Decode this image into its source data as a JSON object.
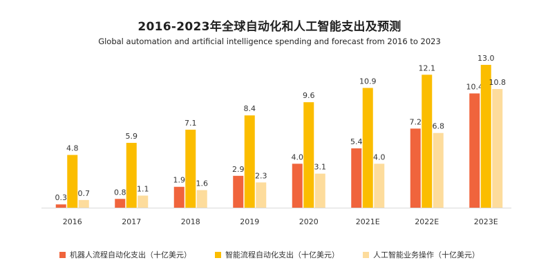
{
  "chart_data": {
    "type": "bar",
    "title": "2016-2023年全球自动化和人工智能支出及预测",
    "subtitle": "Global automation and artificial intelligence spending and forecast from 2016 to 2023",
    "categories": [
      "2016",
      "2017",
      "2018",
      "2019",
      "2020",
      "2021E",
      "2022E",
      "2023E"
    ],
    "series": [
      {
        "name": "机器人流程自动化支出（十亿美元）",
        "color": "#f0643c",
        "values": [
          0.3,
          0.8,
          1.9,
          2.9,
          4.0,
          5.4,
          7.2,
          10.4
        ]
      },
      {
        "name": "智能流程自动化支出（十亿美元）",
        "color": "#fbbd00",
        "values": [
          4.8,
          5.9,
          7.1,
          8.4,
          9.6,
          10.9,
          12.1,
          13.0
        ]
      },
      {
        "name": "人工智能业务操作（十亿美元）",
        "color": "#fddc9c",
        "values": [
          0.7,
          1.1,
          1.6,
          2.3,
          3.1,
          4.0,
          6.8,
          10.8
        ]
      }
    ],
    "xlabel": "",
    "ylabel": "",
    "ylim": [
      0,
      13
    ],
    "grid": false,
    "legend": "bottom"
  }
}
